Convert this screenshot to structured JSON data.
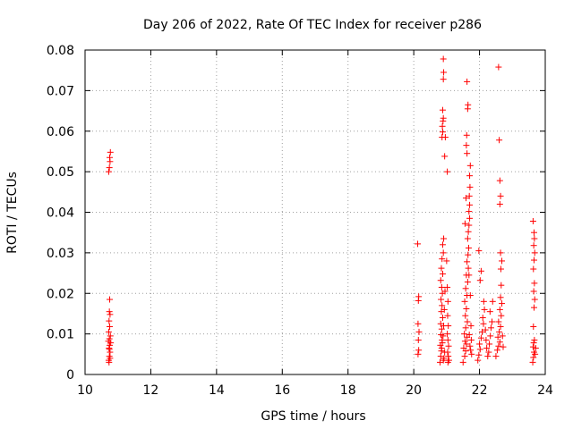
{
  "chart_data": {
    "type": "scatter",
    "title": "Day 206 of 2022, Rate Of TEC Index for receiver p286",
    "xlabel": "GPS time / hours",
    "ylabel": "ROTI / TECUs",
    "xlim": [
      10,
      24
    ],
    "ylim": [
      0,
      0.08
    ],
    "grid": true,
    "marker": "+",
    "color": "#ff0000",
    "x_ticks": [
      "10",
      "12",
      "14",
      "16",
      "18",
      "20",
      "22",
      "24"
    ],
    "y_ticks": [
      "0",
      "0.01",
      "0.02",
      "0.03",
      "0.04",
      "0.05",
      "0.06",
      "0.07",
      "0.08"
    ],
    "series": [
      {
        "name": "p286",
        "points": [
          [
            10.72,
            0.0035
          ],
          [
            10.74,
            0.0045
          ],
          [
            10.76,
            0.0055
          ],
          [
            10.73,
            0.0065
          ],
          [
            10.75,
            0.0072
          ],
          [
            10.78,
            0.0078
          ],
          [
            10.71,
            0.0082
          ],
          [
            10.74,
            0.0088
          ],
          [
            10.77,
            0.0095
          ],
          [
            10.72,
            0.0105
          ],
          [
            10.75,
            0.0118
          ],
          [
            10.73,
            0.0132
          ],
          [
            10.76,
            0.0148
          ],
          [
            10.74,
            0.0155
          ],
          [
            10.75,
            0.0185
          ],
          [
            10.73,
            0.003
          ],
          [
            10.76,
            0.004
          ],
          [
            10.74,
            0.0062
          ],
          [
            10.72,
            0.05
          ],
          [
            10.74,
            0.051
          ],
          [
            10.76,
            0.0525
          ],
          [
            10.75,
            0.0535
          ],
          [
            10.77,
            0.0548
          ],
          [
            20.12,
            0.0322
          ],
          [
            20.15,
            0.0192
          ],
          [
            20.14,
            0.0182
          ],
          [
            20.13,
            0.0125
          ],
          [
            20.16,
            0.0105
          ],
          [
            20.14,
            0.0085
          ],
          [
            20.15,
            0.006
          ],
          [
            20.13,
            0.005
          ],
          [
            20.8,
            0.003
          ],
          [
            20.82,
            0.0045
          ],
          [
            20.84,
            0.0058
          ],
          [
            20.81,
            0.0072
          ],
          [
            20.86,
            0.0085
          ],
          [
            20.83,
            0.0098
          ],
          [
            20.85,
            0.0112
          ],
          [
            20.82,
            0.0125
          ],
          [
            20.88,
            0.014
          ],
          [
            20.84,
            0.0155
          ],
          [
            20.86,
            0.017
          ],
          [
            20.83,
            0.0185
          ],
          [
            20.87,
            0.02
          ],
          [
            20.85,
            0.0215
          ],
          [
            20.82,
            0.0232
          ],
          [
            20.88,
            0.0248
          ],
          [
            20.84,
            0.0262
          ],
          [
            20.86,
            0.0285
          ],
          [
            20.9,
            0.03
          ],
          [
            20.88,
            0.032
          ],
          [
            20.91,
            0.0335
          ],
          [
            20.85,
            0.0065
          ],
          [
            20.87,
            0.0078
          ],
          [
            20.89,
            0.0095
          ],
          [
            20.92,
            0.004
          ],
          [
            20.94,
            0.0055
          ],
          [
            20.91,
            0.012
          ],
          [
            20.93,
            0.016
          ],
          [
            20.95,
            0.0205
          ],
          [
            20.9,
            0.0035
          ],
          [
            20.86,
            0.0585
          ],
          [
            20.88,
            0.0598
          ],
          [
            20.87,
            0.0612
          ],
          [
            20.89,
            0.0625
          ],
          [
            20.9,
            0.0632
          ],
          [
            20.88,
            0.0652
          ],
          [
            20.9,
            0.0728
          ],
          [
            20.91,
            0.0745
          ],
          [
            20.9,
            0.0778
          ],
          [
            20.96,
            0.0585
          ],
          [
            20.94,
            0.0538
          ],
          [
            21.02,
            0.05
          ],
          [
            21.0,
            0.028
          ],
          [
            21.02,
            0.0215
          ],
          [
            21.04,
            0.018
          ],
          [
            21.03,
            0.0145
          ],
          [
            21.05,
            0.012
          ],
          [
            21.02,
            0.01
          ],
          [
            21.04,
            0.0085
          ],
          [
            21.06,
            0.007
          ],
          [
            21.03,
            0.0055
          ],
          [
            21.05,
            0.0045
          ],
          [
            21.07,
            0.0035
          ],
          [
            21.04,
            0.003
          ],
          [
            21.5,
            0.003
          ],
          [
            21.55,
            0.0045
          ],
          [
            21.58,
            0.0058
          ],
          [
            21.52,
            0.0065
          ],
          [
            21.6,
            0.0075
          ],
          [
            21.56,
            0.0082
          ],
          [
            21.62,
            0.0092
          ],
          [
            21.54,
            0.01
          ],
          [
            21.58,
            0.0115
          ],
          [
            21.63,
            0.013
          ],
          [
            21.57,
            0.0145
          ],
          [
            21.6,
            0.0162
          ],
          [
            21.55,
            0.018
          ],
          [
            21.62,
            0.0195
          ],
          [
            21.58,
            0.0212
          ],
          [
            21.64,
            0.0228
          ],
          [
            21.6,
            0.0245
          ],
          [
            21.66,
            0.0262
          ],
          [
            21.62,
            0.0278
          ],
          [
            21.65,
            0.0295
          ],
          [
            21.67,
            0.0312
          ],
          [
            21.64,
            0.0335
          ],
          [
            21.66,
            0.0352
          ],
          [
            21.68,
            0.0368
          ],
          [
            21.7,
            0.0385
          ],
          [
            21.68,
            0.0402
          ],
          [
            21.7,
            0.0418
          ],
          [
            21.69,
            0.044
          ],
          [
            21.71,
            0.0462
          ],
          [
            21.7,
            0.049
          ],
          [
            21.72,
            0.0515
          ],
          [
            21.62,
            0.0545
          ],
          [
            21.6,
            0.0565
          ],
          [
            21.61,
            0.059
          ],
          [
            21.64,
            0.0655
          ],
          [
            21.65,
            0.0665
          ],
          [
            21.62,
            0.0722
          ],
          [
            21.59,
            0.0435
          ],
          [
            21.56,
            0.0372
          ],
          [
            21.68,
            0.0245
          ],
          [
            21.72,
            0.0195
          ],
          [
            21.74,
            0.012
          ],
          [
            21.75,
            0.0085
          ],
          [
            21.73,
            0.006
          ],
          [
            21.76,
            0.005
          ],
          [
            21.71,
            0.007
          ],
          [
            21.69,
            0.0098
          ],
          [
            21.95,
            0.0035
          ],
          [
            21.98,
            0.0048
          ],
          [
            22.02,
            0.0062
          ],
          [
            22.0,
            0.0075
          ],
          [
            22.05,
            0.009
          ],
          [
            22.08,
            0.0105
          ],
          [
            22.12,
            0.0125
          ],
          [
            22.1,
            0.014
          ],
          [
            22.15,
            0.016
          ],
          [
            22.13,
            0.018
          ],
          [
            22.02,
            0.0232
          ],
          [
            22.05,
            0.0255
          ],
          [
            21.98,
            0.0305
          ],
          [
            22.18,
            0.011
          ],
          [
            22.2,
            0.0085
          ],
          [
            22.22,
            0.0065
          ],
          [
            22.25,
            0.0045
          ],
          [
            22.28,
            0.0055
          ],
          [
            22.3,
            0.0075
          ],
          [
            22.33,
            0.0095
          ],
          [
            22.35,
            0.0115
          ],
          [
            22.38,
            0.013
          ],
          [
            22.32,
            0.0155
          ],
          [
            22.4,
            0.018
          ],
          [
            22.5,
            0.0045
          ],
          [
            22.54,
            0.006
          ],
          [
            22.58,
            0.007
          ],
          [
            22.62,
            0.008
          ],
          [
            22.56,
            0.0092
          ],
          [
            22.6,
            0.0105
          ],
          [
            22.64,
            0.0118
          ],
          [
            22.58,
            0.013
          ],
          [
            22.66,
            0.0145
          ],
          [
            22.62,
            0.016
          ],
          [
            22.68,
            0.0175
          ],
          [
            22.64,
            0.019
          ],
          [
            22.66,
            0.022
          ],
          [
            22.65,
            0.026
          ],
          [
            22.68,
            0.028
          ],
          [
            22.64,
            0.03
          ],
          [
            22.62,
            0.042
          ],
          [
            22.64,
            0.044
          ],
          [
            22.62,
            0.0478
          ],
          [
            22.6,
            0.0578
          ],
          [
            22.58,
            0.0758
          ],
          [
            22.7,
            0.0095
          ],
          [
            22.72,
            0.0068
          ],
          [
            23.62,
            0.003
          ],
          [
            23.64,
            0.0042
          ],
          [
            23.66,
            0.0055
          ],
          [
            23.63,
            0.0068
          ],
          [
            23.65,
            0.0078
          ],
          [
            23.67,
            0.0085
          ],
          [
            23.64,
            0.0118
          ],
          [
            23.66,
            0.0165
          ],
          [
            23.68,
            0.0185
          ],
          [
            23.65,
            0.0205
          ],
          [
            23.67,
            0.0225
          ],
          [
            23.64,
            0.026
          ],
          [
            23.66,
            0.0282
          ],
          [
            23.68,
            0.03
          ],
          [
            23.65,
            0.0318
          ],
          [
            23.67,
            0.0335
          ],
          [
            23.66,
            0.035
          ],
          [
            23.63,
            0.0378
          ],
          [
            23.69,
            0.005
          ],
          [
            23.71,
            0.0065
          ]
        ]
      }
    ]
  }
}
